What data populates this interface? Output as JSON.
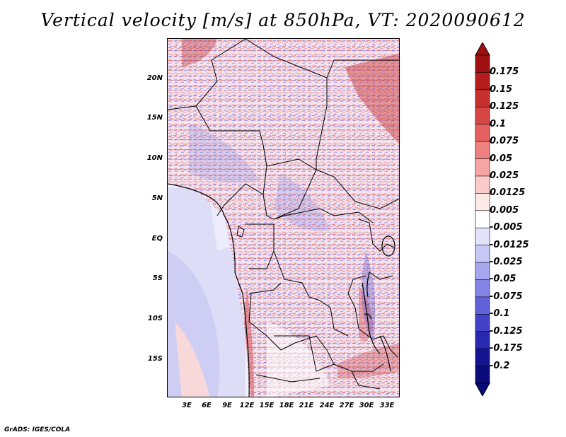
{
  "title": "Vertical velocity [m/s] at 850hPa, VT: 2020090612",
  "footer": "GrADS: IGES/COLA",
  "lat_labels": [
    "20N",
    "15N",
    "10N",
    "5N",
    "EQ",
    "5S",
    "10S",
    "15S"
  ],
  "lon_labels": [
    "3E",
    "6E",
    "9E",
    "12E",
    "15E",
    "18E",
    "21E",
    "24E",
    "27E",
    "30E",
    "33E"
  ],
  "colorbar": {
    "labels": [
      "0.175",
      "0.15",
      "0.125",
      "0.1",
      "0.075",
      "0.05",
      "0.025",
      "0.0125",
      "0.005",
      "-0.005",
      "-0.0125",
      "-0.025",
      "-0.05",
      "-0.075",
      "-0.1",
      "-0.125",
      "-0.175",
      "-0.2"
    ],
    "colors": [
      "#a01010",
      "#b51c1c",
      "#c83030",
      "#d84545",
      "#e46060",
      "#ee8080",
      "#f6a5a5",
      "#fbcaca",
      "#fde8e8",
      "#ffffff",
      "#e2e2fb",
      "#c8c8f6",
      "#a6a6ef",
      "#8484e6",
      "#6262d8",
      "#4242c8",
      "#2828b0",
      "#141490",
      "#0a0a78"
    ]
  }
}
